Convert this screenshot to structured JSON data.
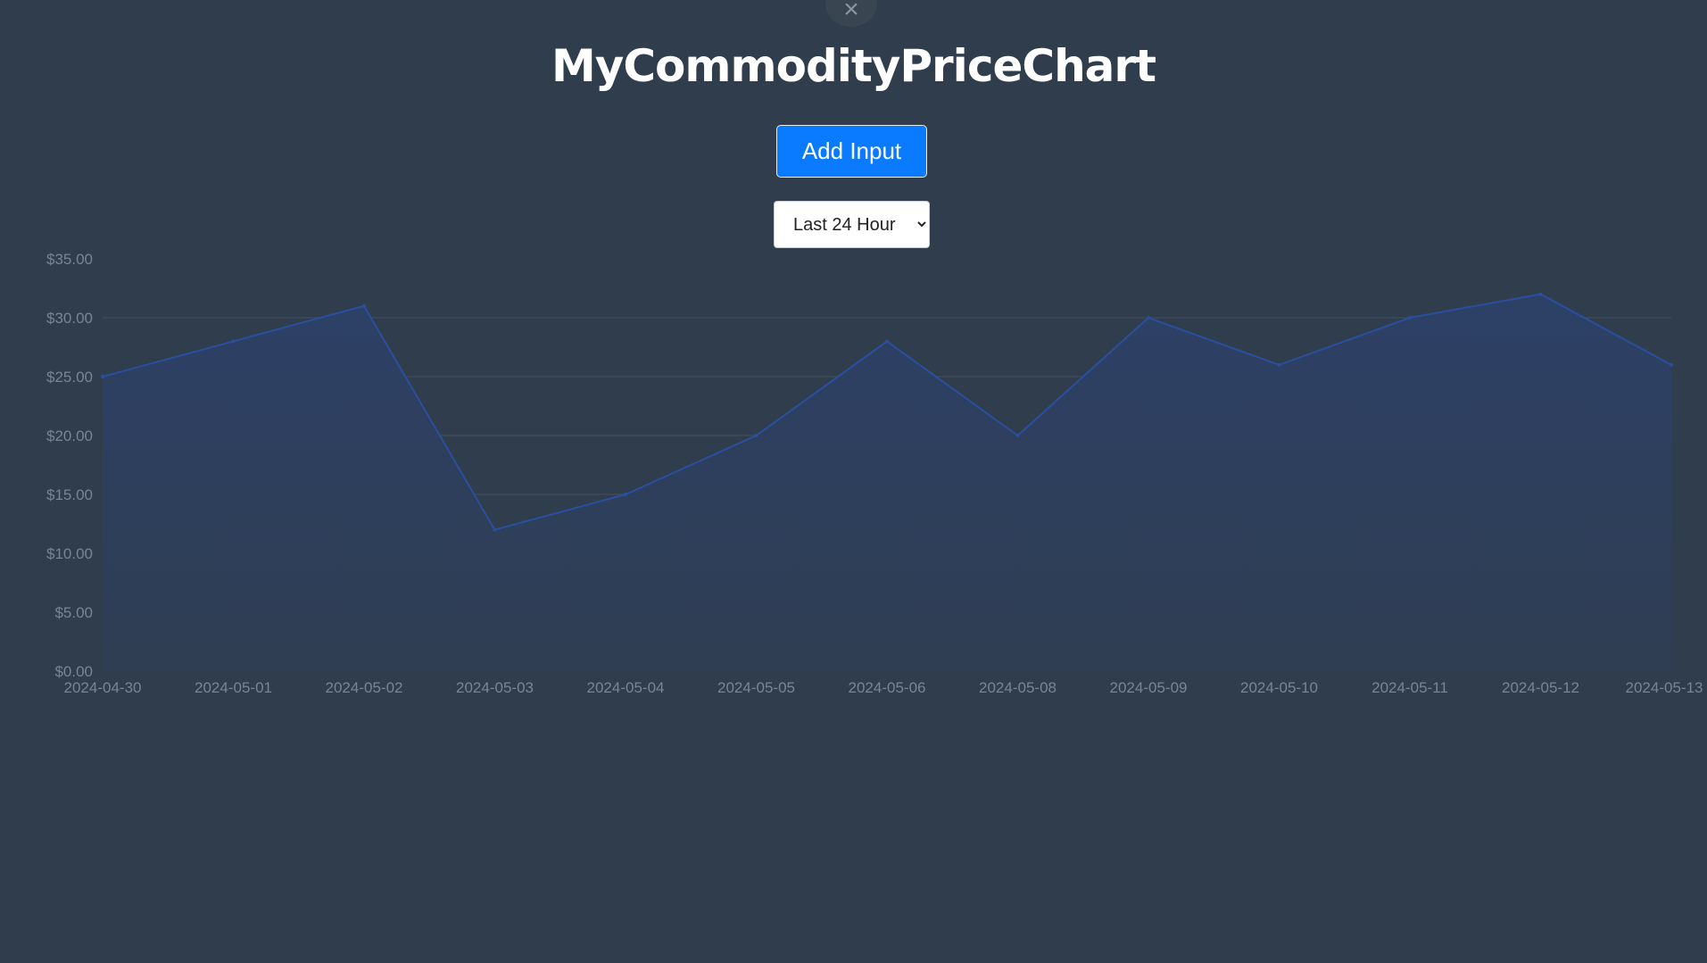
{
  "close_label": "×",
  "title": "MyCommodityPriceChart",
  "add_button_label": "Add Input",
  "range_select": {
    "selected": "Last 24 Hour",
    "options": [
      "Last 24 Hour"
    ]
  },
  "colors": {
    "background": "#2f3d4c",
    "line": "#2a4f9e",
    "fill": "#2d4066",
    "button": "#0a7bff"
  },
  "chart_data": {
    "type": "area",
    "x": [
      "2024-04-30",
      "2024-05-01",
      "2024-05-02",
      "2024-05-03",
      "2024-05-04",
      "2024-05-05",
      "2024-05-06",
      "2024-05-08",
      "2024-05-09",
      "2024-05-10",
      "2024-05-11",
      "2024-05-12",
      "2024-05-13"
    ],
    "series": [
      {
        "values": [
          25,
          28,
          31,
          12,
          15,
          20,
          28,
          20,
          30,
          26,
          30,
          32,
          26
        ]
      }
    ],
    "y_ticks": [
      "$0.00",
      "$5.00",
      "$10.00",
      "$15.00",
      "$20.00",
      "$25.00",
      "$30.00",
      "$35.00"
    ],
    "ylim": [
      0,
      35
    ],
    "grid": true,
    "title": "",
    "xlabel": "",
    "ylabel": ""
  }
}
